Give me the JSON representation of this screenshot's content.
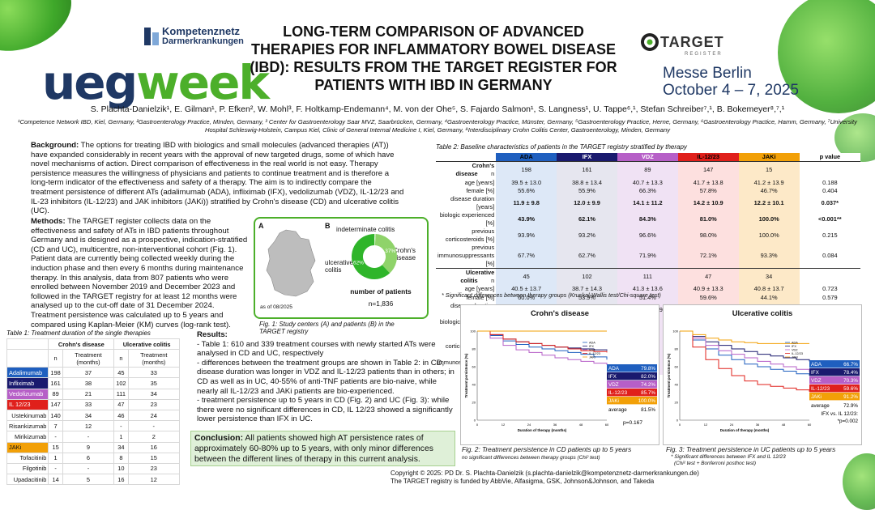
{
  "header": {
    "title": "LONG-TERM COMPARISON OF ADVANCED THERAPIES FOR INFLAMMATORY BOWEL DISEASE (IBD): RESULTS FROM THE TARGET REGISTER FOR PATIENTS WITH IBD IN GERMANY",
    "logo_ueg": "ueg",
    "logo_week": "week",
    "kn_line1": "Kompetenznetz",
    "kn_line2": "Darmerkrankungen",
    "target_logo": "TARGET",
    "target_sub": "REGISTER",
    "messe_line1": "Messe Berlin",
    "messe_line2": "October 4 – 7, 2025",
    "authors": "S. Plachta-Danielzik¹, E. Gilman¹, P. Efken², W. Mohl³, F. Holtkamp-Endemann⁴, M. von der Ohe⁵, S. Fajardo Salmon¹, S. Langness¹, U. Tappe⁶,¹, Stefan Schreiber⁷,¹, B. Bokemeyer⁸,⁷,¹",
    "affiliations": "¹Competence Network IBD, Kiel, Germany, ²Gastroenterology Practice, MInden, Germany, ³ Center for Gastroenterology Saar MVZ, Saarbrücken, Germany,  ⁴Gastroenterology Practice, Münster, Germany, ⁵Gastroenterology Practice, Herne, Germany, ⁶Gastroenterology Practice, Hamm, Germany, ⁷University Hospital Schleswig-Holstein, Campus Kiel, Clinic of General Internal Medicine I, Kiel, Germany, ⁸Interdisciplinary Crohn Colitis Center, Gastroenterology, Minden, Germany"
  },
  "background": {
    "heading": "Background:",
    "text": " The options for treating IBD with biologics and small molecules (advanced therapies (AT)) have expanded considerably in recent years with the approval of new targeted drugs, some of which have novel mechanisms of action. Direct comparison of effectiveness in the real world is not easy. Therapy persistence measures the willingness of physicians and patients to continue treatment and is therefore a long-term indicator of the effectiveness and safety of a therapy. The aim is to indirectly compare the treatment persistence of different ATs (adalimumab (ADA), infliximab (IFX), vedolizumab (VDZ), IL-12/23 and IL-23 inhibitors (IL-12/23) and JAK inhibitors (JAKi)) stratified by Crohn's disease (CD) and ulcerative colitis (UC)."
  },
  "methods": {
    "heading": "Methods:",
    "text": " The TARGET register collects data on the effectiveness and safety of ATs in IBD patients throughout Germany and is designed as a prospective, indication-stratified (CD and UC), multicentre, non-interventional cohort (Fig. 1). Patient data are currently being collected weekly during the induction phase and then every 6 months during maintenance therapy. In this analysis, data from 807 patients who were enrolled between November 2019 and December 2023 and followed in the TARGET registry for at least 12 months were analysed up to the cut-off date of 31 December 2024. Treatment persistence was calculated up to 5 years and compared using Kaplan-Meier (KM) curves (log-rank test)."
  },
  "fig1": {
    "label_a": "A",
    "label_b": "B",
    "as_of": "as of 08/2025",
    "indeterminate": "indeterminate colitis",
    "crohns": "Crohn's disease",
    "uc": "ulcerative colitis",
    "n_title": "number of patients",
    "n_value": "n=1,836",
    "caption": "Fig. 1: Study centers (A) and patients (B) in the TARGET registry",
    "pie_colors": [
      "#cfeec0",
      "#8fd36a",
      "#2fb52a"
    ]
  },
  "chart_data": [
    {
      "type": "pie",
      "title": "",
      "slices": [
        {
          "label": "indeterminate colitis",
          "value": 1,
          "text": "1%"
        },
        {
          "label": "ulcerative colitis",
          "value": 37,
          "text": "37%"
        },
        {
          "label": "Crohn's disease",
          "value": 62,
          "text": "62%"
        }
      ]
    },
    {
      "type": "line",
      "title": "Crohn's disease",
      "xlabel": "Duration of therapy (months)",
      "ylabel": "Treatment persistence (%)",
      "xlim": [
        0,
        60
      ],
      "ylim": [
        0,
        100
      ],
      "x_ticks": [
        "0",
        "12",
        "24",
        "36",
        "48",
        "60"
      ],
      "y_ticks": [
        "0",
        "20",
        "40",
        "60",
        "80",
        "100"
      ],
      "series": [
        {
          "name": "ADA",
          "x": [
            0,
            6,
            12,
            18,
            24,
            30,
            36,
            42,
            48,
            54,
            60
          ],
          "values": [
            100,
            95,
            89,
            85,
            82,
            80,
            78,
            76,
            74,
            71,
            68
          ]
        },
        {
          "name": "IFX",
          "x": [
            0,
            6,
            12,
            18,
            24,
            30,
            36,
            42,
            48,
            54,
            60
          ],
          "values": [
            100,
            96,
            91,
            88,
            86,
            84,
            82,
            81,
            80,
            79,
            78
          ]
        },
        {
          "name": "VDZ",
          "x": [
            0,
            6,
            12,
            18,
            24,
            30,
            36,
            42,
            48,
            54,
            60
          ],
          "values": [
            100,
            92,
            84,
            79,
            76,
            73,
            70,
            68,
            66,
            64,
            62
          ]
        },
        {
          "name": "IL-12/23",
          "x": [
            0,
            6,
            12,
            18,
            24,
            30,
            36,
            42,
            48,
            54,
            60
          ],
          "values": [
            100,
            96,
            91,
            88,
            86,
            84,
            82,
            80,
            78,
            77,
            76
          ]
        },
        {
          "name": "JAKi",
          "x": [
            0,
            6,
            12,
            18,
            24,
            30,
            36,
            42,
            48,
            54,
            60
          ],
          "values": [
            100,
            100,
            100,
            100,
            100,
            100,
            100,
            100,
            100,
            100,
            100
          ]
        }
      ],
      "legend_rows": [
        [
          "ADA",
          "79.8%"
        ],
        [
          "IFX",
          "82.0%"
        ],
        [
          "VDZ",
          "74.2%"
        ],
        [
          "IL-12/23",
          "85.7%"
        ],
        [
          "JAKi",
          "100.0%"
        ]
      ],
      "average_label": "average",
      "average_value": "81.5%",
      "pvalue": "p=0.167",
      "caption": "Fig. 2: Treatment persistence in CD patients up to 5 years",
      "note": "no significant differences between therapy groups (Chi² test)"
    },
    {
      "type": "line",
      "title": "Ulcerative colitis",
      "xlabel": "Duration of therapy (months)",
      "ylabel": "Treatment persistence (%)",
      "xlim": [
        0,
        60
      ],
      "ylim": [
        0,
        100
      ],
      "x_ticks": [
        "0",
        "12",
        "24",
        "36",
        "48",
        "60"
      ],
      "y_ticks": [
        "0",
        "20",
        "40",
        "60",
        "80",
        "100"
      ],
      "series": [
        {
          "name": "ADA",
          "x": [
            0,
            6,
            12,
            18,
            24,
            30,
            36,
            42,
            48,
            54,
            60
          ],
          "values": [
            100,
            90,
            80,
            73,
            68,
            63,
            60,
            57,
            55,
            52,
            50
          ]
        },
        {
          "name": "IFX",
          "x": [
            0,
            6,
            12,
            18,
            24,
            30,
            36,
            42,
            48,
            54,
            60
          ],
          "values": [
            100,
            94,
            88,
            84,
            80,
            77,
            74,
            72,
            70,
            68,
            66
          ]
        },
        {
          "name": "VDZ",
          "x": [
            0,
            6,
            12,
            18,
            24,
            30,
            36,
            42,
            48,
            54,
            60
          ],
          "values": [
            100,
            92,
            84,
            78,
            74,
            70,
            66,
            63,
            60,
            57,
            54
          ]
        },
        {
          "name": "IL-12/23",
          "x": [
            0,
            6,
            12,
            18,
            24,
            30,
            36,
            42,
            48,
            54,
            60
          ],
          "values": [
            100,
            82,
            68,
            58,
            50,
            44,
            40,
            38,
            36,
            34,
            32
          ]
        },
        {
          "name": "JAKi",
          "x": [
            0,
            6,
            12,
            18,
            24,
            30,
            36,
            42,
            48,
            54,
            60
          ],
          "values": [
            100,
            96,
            92,
            90,
            88,
            87,
            86,
            86,
            86,
            86,
            86
          ]
        }
      ],
      "legend_rows": [
        [
          "ADA",
          "66.7%"
        ],
        [
          "IFX",
          "78.4%"
        ],
        [
          "VDZ",
          "70.3%"
        ],
        [
          "IL-12/23",
          "59.6%"
        ],
        [
          "JAKi",
          "91.2%"
        ]
      ],
      "average_label": "average",
      "average_value": "72.9%",
      "pvalue_line1": "IFX vs. IL 12/23:",
      "pvalue_line2": "*p=0.002",
      "caption": "Fig. 3: Treatment persistence in UC patients up to 5 years",
      "note1": "* Significant differences between IFX and IL 12/23",
      "note2": "(Chi² test + Bonferroni posthoc test)"
    }
  ],
  "series_colors": {
    "ADA": "#1f5fbf",
    "IFX": "#1a1a6e",
    "VDZ": "#b65fc7",
    "IL-12/23": "#e0201b",
    "JAKi": "#f2a007"
  },
  "table1": {
    "caption": "Table 1: Treatment duration of the single therapies",
    "group_cd": "Crohn's disease",
    "group_uc": "Ulcerative colitis",
    "sub": [
      "n",
      "Treatment (months)",
      "n",
      "Treatment (months)"
    ],
    "rows": [
      {
        "name": "Adalimumab",
        "v": [
          "198",
          "37",
          "45",
          "33"
        ],
        "bg": "#1f5fbf",
        "fg": "#fff",
        "sub": false
      },
      {
        "name": "Infliximab",
        "v": [
          "161",
          "38",
          "102",
          "35"
        ],
        "bg": "#1a1a6e",
        "fg": "#fff",
        "sub": false
      },
      {
        "name": "Vedolizumab",
        "v": [
          "89",
          "21",
          "111",
          "34"
        ],
        "bg": "#b65fc7",
        "fg": "#fff",
        "sub": false
      },
      {
        "name": "IL 12/23",
        "v": [
          "147",
          "33",
          "47",
          "23"
        ],
        "bg": "#e0201b",
        "fg": "#fff",
        "sub": false
      },
      {
        "name": "Ustekinumab",
        "v": [
          "140",
          "34",
          "46",
          "24"
        ],
        "bg": "#fff",
        "fg": "#111",
        "sub": true
      },
      {
        "name": "Risankizumab",
        "v": [
          "7",
          "12",
          "-",
          "-"
        ],
        "bg": "#fff",
        "fg": "#111",
        "sub": true
      },
      {
        "name": "Mirikizumab",
        "v": [
          "-",
          "-",
          "1",
          "2"
        ],
        "bg": "#fff",
        "fg": "#111",
        "sub": true
      },
      {
        "name": "JAKi",
        "v": [
          "15",
          "9",
          "34",
          "16"
        ],
        "bg": "#f2a007",
        "fg": "#111",
        "sub": false
      },
      {
        "name": "Tofacitinib",
        "v": [
          "1",
          "6",
          "8",
          "15"
        ],
        "bg": "#fff",
        "fg": "#111",
        "sub": true
      },
      {
        "name": "Filgotinib",
        "v": [
          "-",
          "-",
          "10",
          "23"
        ],
        "bg": "#fff",
        "fg": "#111",
        "sub": true
      },
      {
        "name": "Upadacitinib",
        "v": [
          "14",
          "5",
          "16",
          "12"
        ],
        "bg": "#fff",
        "fg": "#111",
        "sub": true
      }
    ]
  },
  "table2": {
    "caption": "Table 2: Baseline characteristics of patients in the TARGET registry stratified by therapy",
    "cols": [
      "ADA",
      "IFX",
      "VDZ",
      "IL-12/23",
      "JAKi",
      "p value"
    ],
    "col_colors": [
      "#1f5fbf",
      "#1a1a6e",
      "#b65fc7",
      "#e0201b",
      "#f2a007",
      "#fff"
    ],
    "col_text": [
      "#000",
      "#fff",
      "#fff",
      "#000",
      "#000",
      "#000"
    ],
    "cell_bg": [
      "#dde8f7",
      "#e6e6ef",
      "#f0e2f4",
      "#fde0df",
      "#fde9c8",
      "#fff"
    ],
    "rows": [
      {
        "label": "Crohn's disease",
        "n": "n",
        "v": [
          "198",
          "161",
          "89",
          "147",
          "15",
          ""
        ],
        "head": true,
        "bold": false
      },
      {
        "label": "age [years]",
        "v": [
          "39.5 ± 13.0",
          "38.8 ± 13.4",
          "40.7 ± 13.3",
          "41.7 ± 13.8",
          "41.2 ± 13.9",
          "0.188"
        ],
        "head": false,
        "bold": false
      },
      {
        "label": "female [%]",
        "v": [
          "55.6%",
          "55.9%",
          "66.3%",
          "57.8%",
          "46.7%",
          "0.404"
        ],
        "head": false,
        "bold": false
      },
      {
        "label": "disease duration [years]",
        "v": [
          "11.9 ± 9.8",
          "12.0 ± 9.9",
          "14.1 ± 11.2",
          "14.2 ± 10.9",
          "12.2 ± 10.1",
          "0.037*"
        ],
        "head": false,
        "bold": true
      },
      {
        "label": "biologic experienced [%]",
        "v": [
          "43.9%",
          "62.1%",
          "84.3%",
          "81.0%",
          "100.0%",
          "<0.001**"
        ],
        "head": false,
        "bold": true
      },
      {
        "label": "previous corticosteroids [%]",
        "v": [
          "93.9%",
          "93.2%",
          "96.6%",
          "98.0%",
          "100.0%",
          "0.215"
        ],
        "head": false,
        "bold": false
      },
      {
        "label": "previous immunosuppressants [%]",
        "v": [
          "67.7%",
          "62.7%",
          "71.9%",
          "72.1%",
          "93.3%",
          "0.084"
        ],
        "head": false,
        "bold": false
      },
      {
        "label": "Ulcerative colitis",
        "n": "n",
        "v": [
          "45",
          "102",
          "111",
          "47",
          "34",
          ""
        ],
        "head": true,
        "bold": false
      },
      {
        "label": "age [years]",
        "v": [
          "40.5 ± 13.7",
          "38.7 ± 14.3",
          "41.3 ± 13.6",
          "40.9 ± 13.3",
          "40.8 ± 13.7",
          "0.723"
        ],
        "head": false,
        "bold": false
      },
      {
        "label": "female [%]",
        "v": [
          "60.0%",
          "53.9%",
          "51.4%",
          "59.6%",
          "44.1%",
          "0.579"
        ],
        "head": false,
        "bold": false
      },
      {
        "label": "disease duration [years]",
        "v": [
          "12.9 ± 10.7",
          "10.2 ± 8.8",
          "12.7 ± 10.9",
          "10.9 ± 8.7",
          "10.5 ± 8.4",
          "0.296"
        ],
        "head": false,
        "bold": false
      },
      {
        "label": "biologic experienced [%]",
        "v": [
          "51.1%",
          "57.8%",
          "58.6%",
          "93.6%",
          "100.0%",
          "<0.001**"
        ],
        "head": false,
        "bold": true
      },
      {
        "label": "previous corticosteroids [%]",
        "v": [
          "97.8%",
          "92.2%",
          "89.2%",
          "87.2%",
          "100.0%",
          "0.104"
        ],
        "head": false,
        "bold": false
      },
      {
        "label": "previous immunosuppressants [%]",
        "v": [
          "53.3%",
          "61.8%",
          "64.9%",
          "57.4%",
          "76.5%",
          "0.263"
        ],
        "head": false,
        "bold": false
      }
    ],
    "footnote": "* Significant differences between therapy groups (Kruskal-Wallis test/Chi-square test)"
  },
  "results": {
    "heading": "Results:",
    "lines": [
      "- Table 1: 610 and 339 treatment courses with newly started ATs were analysed in CD and UC, respectively",
      "- differences between the treatment groups are shown in Table 2: in CD, disease duration was longer in VDZ and IL-12/23 patients than in others; in CD as well as in UC, 40-55% of anti-TNF patients are bio-naive, while nearly all IL-12/23 and JAKi patients are bio-experienced.",
      "- treatment persistence up to 5 years in CD (Fig. 2) and UC (Fig. 3): while there were no significant differences in CD, IL 12/23 showed a significantly lower persistence than IFX in UC."
    ]
  },
  "conclusion": {
    "heading": "Conclusion:",
    "text": " All patients showed high AT persistence rates of approximately 60-80% up to 5 years, with only minor differences between the different lines of therapy in this current analysis."
  },
  "footer": {
    "line1": "Copyright © 2025: PD Dr. S. Plachta-Danielzik (s.plachta-danielzik@kompetenznetz-darmerkrankungen.de)",
    "line2": "The TARGET registry is funded by AbbVie, Alfasigma, GSK, Johnson&Johnson, and Takeda"
  }
}
